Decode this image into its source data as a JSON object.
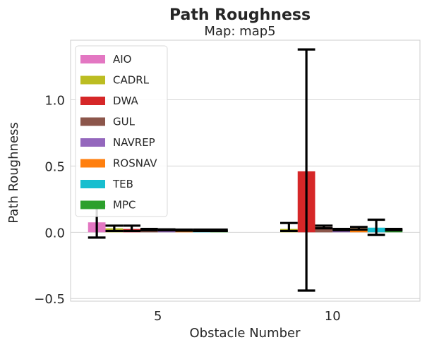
{
  "chart_data": {
    "type": "bar",
    "title": "Path Roughness",
    "subtitle": "Map: map5",
    "xlabel": "Obstacle Number",
    "ylabel": "Path Roughness",
    "categories": [
      "5",
      "10"
    ],
    "ylim": [
      -0.52,
      1.45
    ],
    "yticks": [
      -0.5,
      0.0,
      0.5,
      1.0
    ],
    "ytick_labels": [
      "−0.5",
      "0.0",
      "0.5",
      "1.0"
    ],
    "grid": true,
    "legend_position": "top-left",
    "series": [
      {
        "name": "AIO",
        "color": "#e377c2",
        "values": [
          0.075,
          null
        ],
        "err_low": [
          -0.04,
          null
        ],
        "err_high": [
          0.2,
          null
        ]
      },
      {
        "name": "CADRL",
        "color": "#bcbd22",
        "values": [
          0.03,
          0.025
        ],
        "err_low": [
          0.01,
          0.01
        ],
        "err_high": [
          0.05,
          0.07
        ]
      },
      {
        "name": "DWA",
        "color": "#d62728",
        "values": [
          0.025,
          0.46
        ],
        "err_low": [
          0.01,
          -0.44
        ],
        "err_high": [
          0.05,
          1.38
        ]
      },
      {
        "name": "GUL",
        "color": "#8c564b",
        "values": [
          0.02,
          0.04
        ],
        "err_low": [
          0.015,
          0.03
        ],
        "err_high": [
          0.025,
          0.05
        ]
      },
      {
        "name": "NAVREP",
        "color": "#9467bd",
        "values": [
          0.018,
          0.02
        ],
        "err_low": [
          0.015,
          0.015
        ],
        "err_high": [
          0.022,
          0.025
        ]
      },
      {
        "name": "ROSNAV",
        "color": "#ff7f0e",
        "values": [
          0.015,
          0.03
        ],
        "err_low": [
          0.012,
          0.02
        ],
        "err_high": [
          0.02,
          0.04
        ]
      },
      {
        "name": "TEB",
        "color": "#17becf",
        "values": [
          0.015,
          0.035
        ],
        "err_low": [
          0.01,
          -0.02
        ],
        "err_high": [
          0.02,
          0.095
        ]
      },
      {
        "name": "MPC",
        "color": "#2ca02c",
        "values": [
          0.015,
          0.02
        ],
        "err_low": [
          0.01,
          0.015
        ],
        "err_high": [
          0.02,
          0.025
        ]
      }
    ]
  }
}
